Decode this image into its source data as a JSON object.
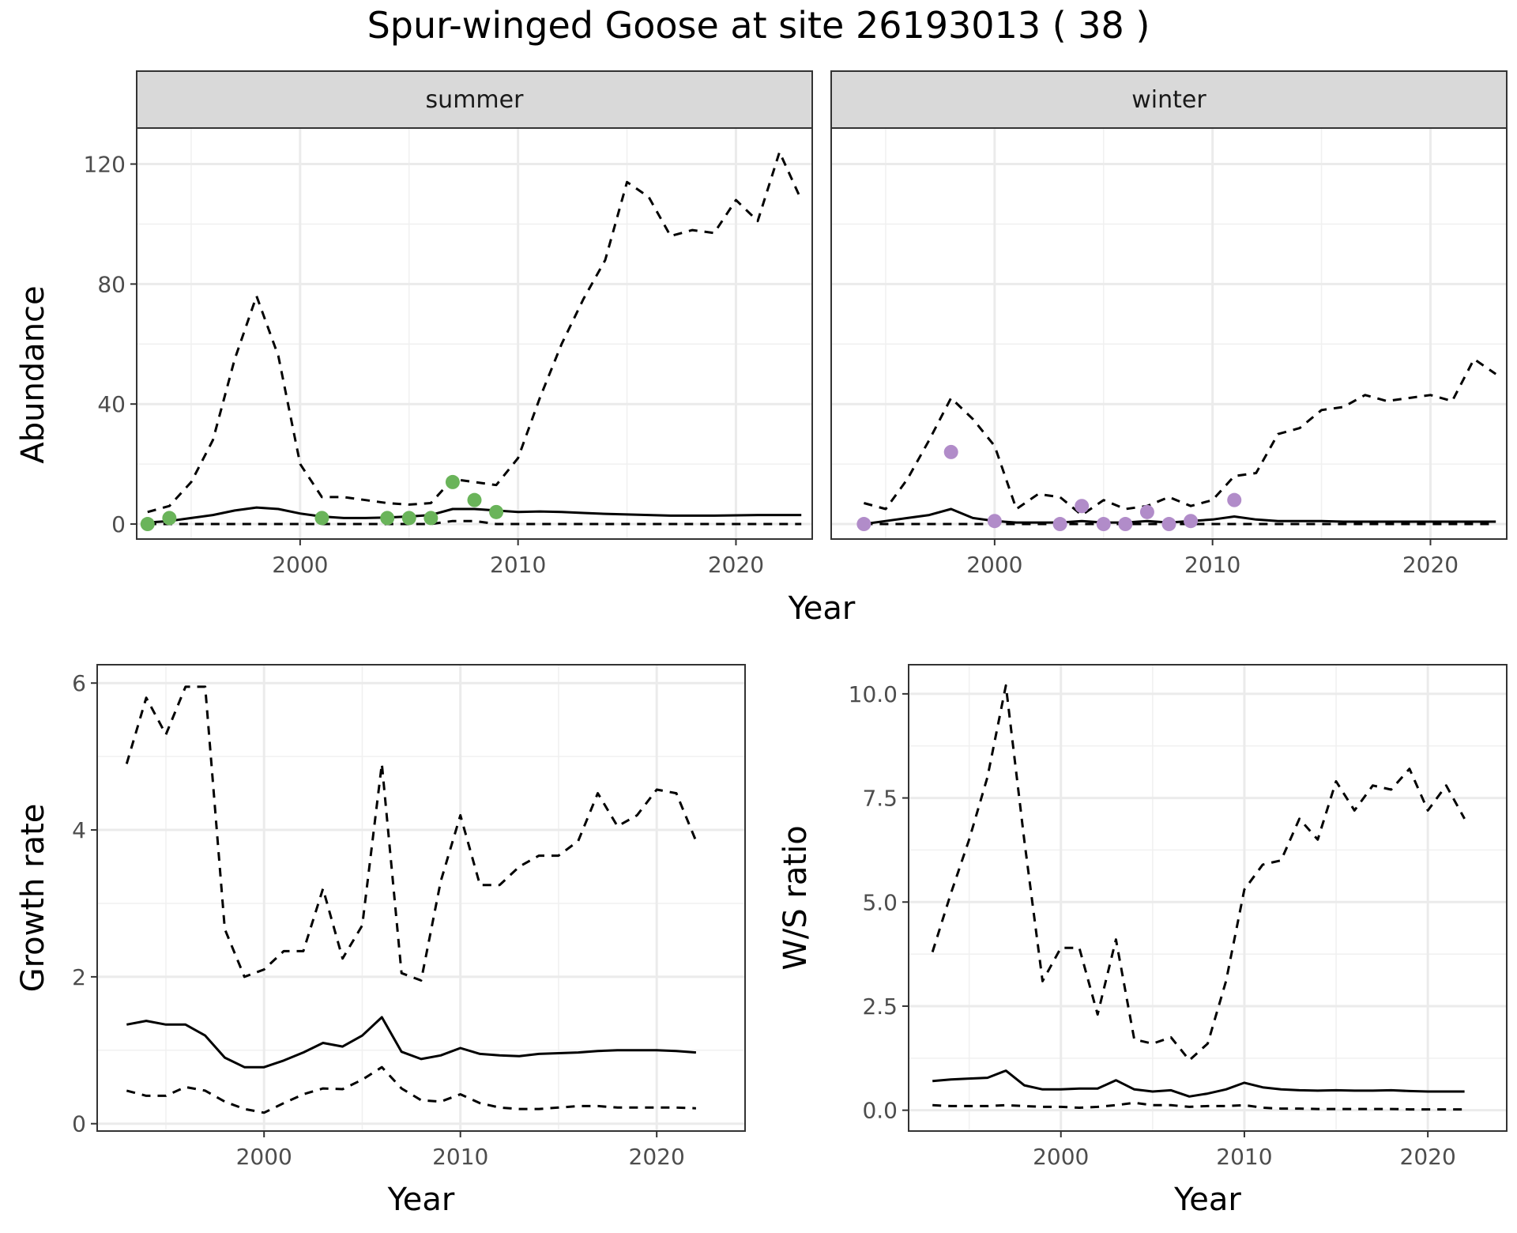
{
  "title": "Spur-winged Goose at site 26193013 ( 38 )",
  "chart_data": [
    {
      "type": "line",
      "facets": [
        {
          "label": "summer",
          "lower": {
            "x": [
              1993,
              1994,
              1995,
              1996,
              1997,
              1998,
              1999,
              2000,
              2001,
              2002,
              2003,
              2004,
              2005,
              2006,
              2007,
              2008,
              2009,
              2010,
              2011,
              2012,
              2013,
              2014,
              2015,
              2016,
              2017,
              2018,
              2019,
              2020,
              2021,
              2022,
              2023
            ],
            "y": [
              0,
              0,
              0,
              0,
              0,
              0,
              0,
              0,
              0,
              0,
              0,
              0,
              0,
              0,
              1,
              1,
              0,
              0,
              0,
              0,
              0,
              0,
              0,
              0,
              0,
              0,
              0,
              0,
              0,
              0,
              0
            ]
          },
          "mean": {
            "x": [
              1993,
              1994,
              1995,
              1996,
              1997,
              1998,
              1999,
              2000,
              2001,
              2002,
              2003,
              2004,
              2005,
              2006,
              2007,
              2008,
              2009,
              2010,
              2011,
              2012,
              2013,
              2014,
              2015,
              2016,
              2017,
              2018,
              2019,
              2020,
              2021,
              2022,
              2023
            ],
            "y": [
              0.5,
              1,
              2,
              3,
              4.5,
              5.5,
              5,
              3.5,
              2.5,
              2,
              2,
              2.2,
              2.5,
              3,
              5,
              5,
              4.5,
              4,
              4.2,
              4,
              3.7,
              3.4,
              3.2,
              3,
              2.8,
              2.8,
              2.8,
              2.9,
              3,
              3,
              3
            ]
          },
          "upper": {
            "x": [
              1993,
              1994,
              1995,
              1996,
              1997,
              1998,
              1999,
              2000,
              2001,
              2002,
              2003,
              2004,
              2005,
              2006,
              2007,
              2008,
              2009,
              2010,
              2011,
              2012,
              2013,
              2014,
              2015,
              2016,
              2017,
              2018,
              2019,
              2020,
              2021,
              2022,
              2023
            ],
            "y": [
              4,
              6,
              14,
              28,
              55,
              76,
              56,
              20,
              9,
              9,
              8,
              7,
              6.5,
              7,
              15,
              14,
              13,
              22,
              42,
              60,
              75,
              88,
              114,
              109,
              96,
              98,
              97,
              108,
              101,
              124,
              108
            ]
          },
          "observed": {
            "x": [
              1993,
              1994,
              2001,
              2004,
              2005,
              2006,
              2007,
              2008,
              2009
            ],
            "y": [
              0,
              2,
              2,
              2,
              2,
              2,
              14,
              8,
              4
            ],
            "color": "#6ab45a"
          }
        },
        {
          "label": "winter",
          "lower": {
            "x": [
              1994,
              1995,
              1996,
              1997,
              1998,
              1999,
              2000,
              2001,
              2002,
              2003,
              2004,
              2005,
              2006,
              2007,
              2008,
              2009,
              2010,
              2011,
              2012,
              2013,
              2014,
              2015,
              2016,
              2017,
              2018,
              2019,
              2020,
              2021,
              2022,
              2023
            ],
            "y": [
              0,
              0,
              0,
              0,
              0,
              0,
              0,
              0,
              0,
              0,
              0,
              0,
              0,
              0,
              0,
              0,
              0,
              0,
              0,
              0,
              0,
              0,
              0,
              0,
              0,
              0,
              0,
              0,
              0,
              0
            ]
          },
          "mean": {
            "x": [
              1994,
              1995,
              1996,
              1997,
              1998,
              1999,
              2000,
              2001,
              2002,
              2003,
              2004,
              2005,
              2006,
              2007,
              2008,
              2009,
              2010,
              2011,
              2012,
              2013,
              2014,
              2015,
              2016,
              2017,
              2018,
              2019,
              2020,
              2021,
              2022,
              2023
            ],
            "y": [
              0,
              1,
              2,
              3,
              5,
              2,
              1,
              0.5,
              0.5,
              0.5,
              1,
              0.5,
              0.5,
              1,
              0.5,
              1,
              1.5,
              2.5,
              1.5,
              1,
              1,
              1,
              0.8,
              0.8,
              0.8,
              0.8,
              0.8,
              0.8,
              0.8,
              0.8
            ]
          },
          "upper": {
            "x": [
              1994,
              1995,
              1996,
              1997,
              1998,
              1999,
              2000,
              2001,
              2002,
              2003,
              2004,
              2005,
              2006,
              2007,
              2008,
              2009,
              2010,
              2011,
              2012,
              2013,
              2014,
              2015,
              2016,
              2017,
              2018,
              2019,
              2020,
              2021,
              2022,
              2023
            ],
            "y": [
              7,
              5,
              15,
              28,
              42,
              35,
              26,
              5,
              10,
              9,
              3,
              8,
              5,
              6,
              9,
              6,
              8,
              16,
              17,
              30,
              32,
              38,
              39,
              43,
              41,
              42,
              43,
              41,
              55,
              50
            ]
          },
          "observed": {
            "x": [
              1994,
              1998,
              2000,
              2003,
              2004,
              2005,
              2006,
              2007,
              2008,
              2009,
              2011
            ],
            "y": [
              0,
              24,
              1,
              0,
              6,
              0,
              0,
              4,
              0,
              1,
              8
            ],
            "color": "#b18cc9"
          }
        }
      ],
      "xlabel": "Year",
      "ylabel": "Abundance",
      "xlim": [
        1992.5,
        2023.5
      ],
      "ylim": [
        -5,
        132
      ],
      "xticks": [
        2000,
        2010,
        2020
      ],
      "yticks": [
        0,
        40,
        80,
        120
      ]
    },
    {
      "type": "line",
      "xlabel": "Year",
      "ylabel": "Growth rate",
      "xlim": [
        1991.5,
        2024.5
      ],
      "ylim": [
        -0.1,
        6.25
      ],
      "xticks": [
        2000,
        2010,
        2020
      ],
      "yticks": [
        0,
        2,
        4,
        6
      ],
      "lower": {
        "x": [
          1993,
          1994,
          1995,
          1996,
          1997,
          1998,
          1999,
          2000,
          2001,
          2002,
          2003,
          2004,
          2005,
          2006,
          2007,
          2008,
          2009,
          2010,
          2011,
          2012,
          2013,
          2014,
          2015,
          2016,
          2017,
          2018,
          2019,
          2020,
          2021,
          2022
        ],
        "y": [
          0.45,
          0.38,
          0.38,
          0.5,
          0.45,
          0.3,
          0.2,
          0.15,
          0.28,
          0.4,
          0.48,
          0.47,
          0.6,
          0.77,
          0.48,
          0.32,
          0.3,
          0.4,
          0.28,
          0.22,
          0.2,
          0.2,
          0.22,
          0.24,
          0.24,
          0.22,
          0.22,
          0.22,
          0.22,
          0.21
        ]
      },
      "mean": {
        "x": [
          1993,
          1994,
          1995,
          1996,
          1997,
          1998,
          1999,
          2000,
          2001,
          2002,
          2003,
          2004,
          2005,
          2006,
          2007,
          2008,
          2009,
          2010,
          2011,
          2012,
          2013,
          2014,
          2015,
          2016,
          2017,
          2018,
          2019,
          2020,
          2021,
          2022
        ],
        "y": [
          1.35,
          1.4,
          1.35,
          1.35,
          1.2,
          0.9,
          0.77,
          0.77,
          0.86,
          0.97,
          1.1,
          1.05,
          1.2,
          1.45,
          0.98,
          0.88,
          0.93,
          1.03,
          0.95,
          0.93,
          0.92,
          0.95,
          0.96,
          0.97,
          0.99,
          1,
          1,
          1,
          0.99,
          0.97
        ]
      },
      "upper": {
        "x": [
          1993,
          1994,
          1995,
          1996,
          1997,
          1998,
          1999,
          2000,
          2001,
          2002,
          2003,
          2004,
          2005,
          2006,
          2007,
          2008,
          2009,
          2010,
          2011,
          2012,
          2013,
          2014,
          2015,
          2016,
          2017,
          2018,
          2019,
          2020,
          2021,
          2022
        ],
        "y": [
          4.9,
          5.8,
          5.3,
          5.95,
          5.95,
          2.65,
          2,
          2.1,
          2.35,
          2.35,
          3.2,
          2.25,
          2.7,
          4.9,
          2.05,
          1.95,
          3.3,
          4.2,
          3.25,
          3.25,
          3.5,
          3.65,
          3.65,
          3.85,
          4.5,
          4.05,
          4.2,
          4.55,
          4.5,
          3.85
        ]
      }
    },
    {
      "type": "line",
      "xlabel": "Year",
      "ylabel": "W/S ratio",
      "xlim": [
        1991.7,
        2024.3
      ],
      "ylim": [
        -0.5,
        10.7
      ],
      "xticks": [
        2000,
        2010,
        2020
      ],
      "yticks": [
        0.0,
        2.5,
        5.0,
        7.5,
        10.0
      ],
      "ytick_labels": [
        "0.0",
        "2.5",
        "5.0",
        "7.5",
        "10.0"
      ],
      "lower": {
        "x": [
          1993,
          1994,
          1995,
          1996,
          1997,
          1998,
          1999,
          2000,
          2001,
          2002,
          2003,
          2004,
          2005,
          2006,
          2007,
          2008,
          2009,
          2010,
          2011,
          2012,
          2013,
          2014,
          2015,
          2016,
          2017,
          2018,
          2019,
          2020,
          2021,
          2022
        ],
        "y": [
          0.12,
          0.1,
          0.1,
          0.1,
          0.12,
          0.1,
          0.08,
          0.08,
          0.06,
          0.08,
          0.12,
          0.18,
          0.12,
          0.12,
          0.08,
          0.1,
          0.1,
          0.12,
          0.06,
          0.04,
          0.04,
          0.03,
          0.03,
          0.03,
          0.03,
          0.03,
          0.02,
          0.02,
          0.02,
          0.02
        ]
      },
      "mean": {
        "x": [
          1993,
          1994,
          1995,
          1996,
          1997,
          1998,
          1999,
          2000,
          2001,
          2002,
          2003,
          2004,
          2005,
          2006,
          2007,
          2008,
          2009,
          2010,
          2011,
          2012,
          2013,
          2014,
          2015,
          2016,
          2017,
          2018,
          2019,
          2020,
          2021,
          2022
        ],
        "y": [
          0.7,
          0.74,
          0.76,
          0.78,
          0.95,
          0.6,
          0.5,
          0.5,
          0.52,
          0.52,
          0.72,
          0.5,
          0.45,
          0.48,
          0.33,
          0.4,
          0.5,
          0.66,
          0.55,
          0.5,
          0.48,
          0.47,
          0.48,
          0.47,
          0.47,
          0.48,
          0.46,
          0.45,
          0.45,
          0.45
        ]
      },
      "upper": {
        "x": [
          1993,
          1994,
          1995,
          1996,
          1997,
          1998,
          1999,
          2000,
          2001,
          2002,
          2003,
          2004,
          2005,
          2006,
          2007,
          2008,
          2009,
          2010,
          2011,
          2012,
          2013,
          2014,
          2015,
          2016,
          2017,
          2018,
          2019,
          2020,
          2021,
          2022
        ],
        "y": [
          3.8,
          5.2,
          6.5,
          8,
          10.2,
          6.5,
          3.1,
          3.9,
          3.9,
          2.3,
          4.1,
          1.7,
          1.6,
          1.75,
          1.2,
          1.6,
          3.1,
          5.3,
          5.9,
          6,
          7,
          6.5,
          7.9,
          7.2,
          7.8,
          7.7,
          8.2,
          7.2,
          7.8,
          7
        ]
      }
    }
  ]
}
